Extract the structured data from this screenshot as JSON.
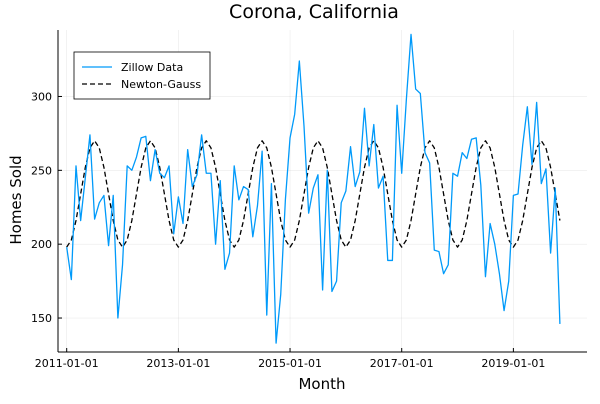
{
  "chart_data": {
    "type": "line",
    "title": "Corona, California",
    "xlabel": "Month",
    "ylabel": "Homes Sold",
    "xlim": [
      "2010-11-05",
      "2020-04-26"
    ],
    "ylim": [
      127,
      345
    ],
    "x_ticks": [
      "2011-01-01",
      "2013-01-01",
      "2015-01-01",
      "2017-01-01",
      "2019-01-01"
    ],
    "y_ticks": [
      150,
      200,
      250,
      300
    ],
    "grid": true,
    "legend_position": "top-left",
    "series": [
      {
        "name": "Zillow Data",
        "color": "#009AFA",
        "style": "solid",
        "start": "2011-01-01",
        "frequency": "monthly",
        "values": [
          198,
          176,
          253,
          216,
          245,
          274,
          217,
          228,
          233,
          199,
          233,
          150,
          186,
          253,
          250,
          259,
          272,
          273,
          243,
          264,
          248,
          245,
          253,
          207,
          232,
          214,
          264,
          239,
          247,
          274,
          248,
          248,
          200,
          243,
          183,
          194,
          253,
          230,
          239,
          237,
          205,
          226,
          263,
          152,
          241,
          133,
          166,
          230,
          272,
          288,
          324,
          280,
          221,
          238,
          247,
          169,
          250,
          168,
          175,
          228,
          236,
          266,
          239,
          249,
          292,
          253,
          281,
          238,
          246,
          189,
          189,
          294,
          248,
          298,
          342,
          305,
          302,
          262,
          255,
          196,
          195,
          180,
          186,
          248,
          246,
          262,
          258,
          271,
          272,
          240,
          178,
          214,
          200,
          180,
          155,
          175,
          233,
          234,
          267,
          293,
          254,
          296,
          241,
          251,
          194,
          238,
          146
        ]
      },
      {
        "name": "Newton-Gauss",
        "color": "#000000",
        "style": "dashed",
        "model": "198 + 72*sin²(π·(t − 2011)) , t in years",
        "start": "2011-01-01",
        "frequency": "monthly",
        "values": []
      }
    ]
  }
}
